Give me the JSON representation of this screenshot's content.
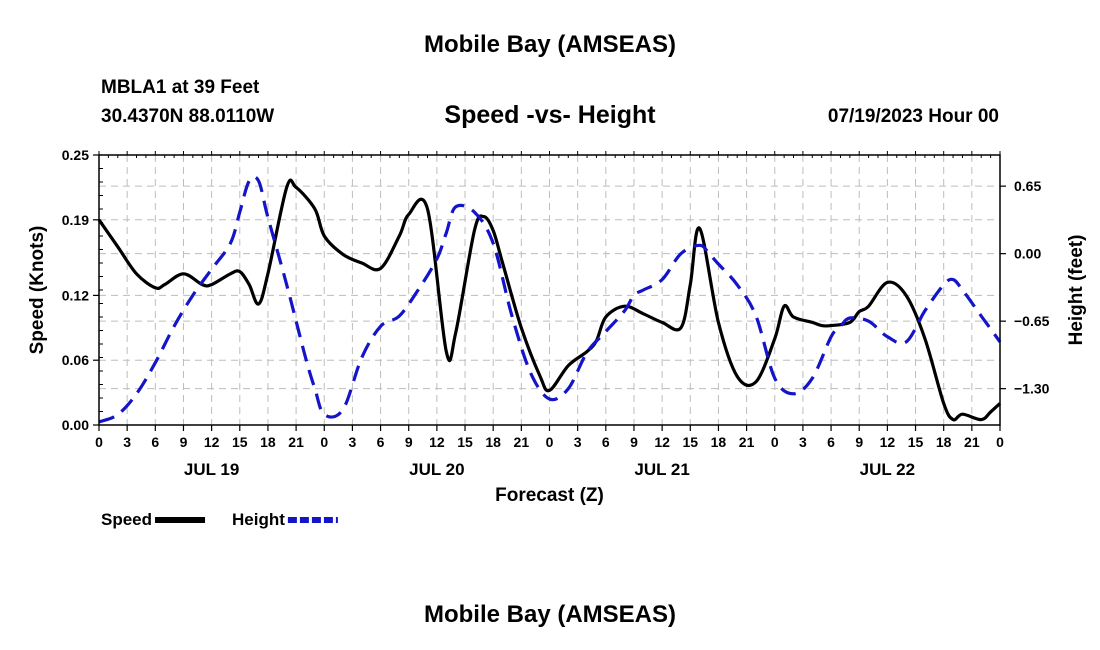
{
  "header": {
    "title": "Mobile Bay (AMSEAS)",
    "station": "MBLA1 at 39 Feet",
    "coords": "30.4370N  88.0110W",
    "subtitle": "Speed -vs- Height",
    "timestamp": "07/19/2023 Hour 00"
  },
  "footer": {
    "title": "Mobile Bay (AMSEAS)"
  },
  "chart_data": {
    "type": "line",
    "title": "Speed -vs- Height",
    "xlabel": "Forecast (Z)",
    "ylabel": "Speed (Knots)",
    "y2label": "Height (feet)",
    "xlim": [
      0,
      96
    ],
    "ylim": [
      0,
      0.25
    ],
    "y2lim": [
      -1.65,
      0.95
    ],
    "yticks": [
      "0.00",
      "0.06",
      "0.12",
      "0.19",
      "0.25"
    ],
    "y2ticks": [
      "0.65",
      "0.00",
      "−0.65",
      "−1.30"
    ],
    "xtick_labels": [
      "0",
      "3",
      "6",
      "9",
      "12",
      "15",
      "18",
      "21",
      "0",
      "3",
      "6",
      "9",
      "12",
      "15",
      "18",
      "21",
      "0",
      "3",
      "6",
      "9",
      "12",
      "15",
      "18",
      "21",
      "0",
      "3",
      "6",
      "9",
      "12",
      "15",
      "18",
      "21",
      "0"
    ],
    "day_labels": [
      "JUL 19",
      "JUL 20",
      "JUL 21",
      "JUL 22"
    ],
    "grid": true,
    "legend": [
      "Speed",
      "Height"
    ],
    "series": [
      {
        "name": "Speed",
        "axis": "left",
        "color": "#000000",
        "dash": "solid",
        "x": [
          0,
          2,
          4,
          6,
          7,
          9,
          11,
          12,
          14,
          15,
          16,
          17,
          18,
          20,
          21,
          23,
          24,
          26,
          28,
          30,
          32,
          33,
          35,
          37,
          38,
          40,
          41,
          42,
          43,
          45,
          47,
          48,
          50,
          52,
          53,
          54,
          56,
          58,
          60,
          62,
          63,
          64,
          66,
          68,
          70,
          72,
          73,
          74,
          76,
          77,
          78,
          80,
          81,
          82,
          84,
          86,
          88,
          90,
          91,
          92,
          94,
          95,
          96
        ],
        "y": [
          0.19,
          0.165,
          0.14,
          0.127,
          0.13,
          0.14,
          0.13,
          0.13,
          0.14,
          0.142,
          0.13,
          0.112,
          0.14,
          0.22,
          0.22,
          0.2,
          0.175,
          0.158,
          0.15,
          0.145,
          0.175,
          0.195,
          0.2,
          0.068,
          0.085,
          0.18,
          0.193,
          0.18,
          0.15,
          0.09,
          0.045,
          0.032,
          0.055,
          0.068,
          0.078,
          0.1,
          0.11,
          0.103,
          0.095,
          0.09,
          0.13,
          0.182,
          0.095,
          0.045,
          0.04,
          0.08,
          0.11,
          0.1,
          0.095,
          0.092,
          0.092,
          0.095,
          0.105,
          0.11,
          0.132,
          0.12,
          0.08,
          0.02,
          0.005,
          0.01,
          0.005,
          0.012,
          0.02
        ]
      },
      {
        "name": "Height",
        "axis": "right",
        "color": "#1414c8",
        "dash": "dashed",
        "x": [
          0,
          2,
          4,
          6,
          8,
          10,
          12,
          14,
          15,
          16,
          17,
          18,
          20,
          22,
          23,
          24,
          26,
          28,
          30,
          32,
          34,
          36,
          37,
          38,
          40,
          42,
          44,
          46,
          48,
          50,
          52,
          54,
          56,
          57,
          58,
          60,
          62,
          64,
          65,
          66,
          68,
          70,
          72,
          74,
          76,
          78,
          79,
          80,
          82,
          84,
          86,
          88,
          90,
          91,
          92,
          94,
          96
        ],
        "y": [
          -1.62,
          -1.55,
          -1.35,
          -1.05,
          -0.7,
          -0.4,
          -0.15,
          0.1,
          0.4,
          0.7,
          0.7,
          0.35,
          -0.3,
          -1.0,
          -1.3,
          -1.55,
          -1.5,
          -1.0,
          -0.7,
          -0.6,
          -0.35,
          -0.05,
          0.2,
          0.45,
          0.4,
          0.1,
          -0.6,
          -1.15,
          -1.4,
          -1.3,
          -0.95,
          -0.75,
          -0.55,
          -0.4,
          -0.35,
          -0.25,
          0.0,
          0.08,
          0.0,
          -0.1,
          -0.3,
          -0.6,
          -1.2,
          -1.35,
          -1.2,
          -0.8,
          -0.7,
          -0.62,
          -0.65,
          -0.8,
          -0.85,
          -0.55,
          -0.3,
          -0.25,
          -0.35,
          -0.6,
          -0.85
        ]
      }
    ]
  }
}
